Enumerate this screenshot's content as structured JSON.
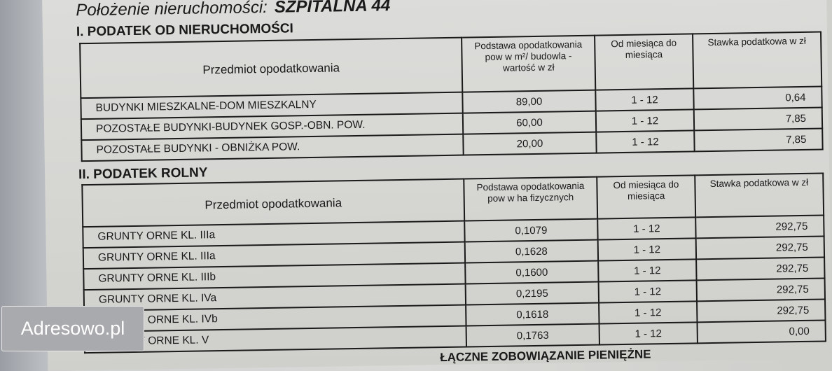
{
  "location": {
    "label": "Położenie nieruchomości:",
    "value": "SZPITALNA 44"
  },
  "section1": {
    "title": "I. PODATEK OD NIERUCHOMOŚCI",
    "headers": [
      "Przedmiot opodatkowania",
      "Podstawa  opodatkowania pow  w m²/ budowla - wartość  w zł",
      "Od miesiąca do miesiąca",
      "Stawka podatkowa w zł"
    ],
    "rows": [
      [
        "BUDYNKI MIESZKALNE-DOM MIESZKALNY",
        "89,00",
        "1 - 12",
        "0,64"
      ],
      [
        "POZOSTAŁE BUDYNKI-BUDYNEK GOSP.-OBN. POW.",
        "60,00",
        "1 - 12",
        "7,85"
      ],
      [
        "POZOSTAŁE BUDYNKI - OBNIŻKA POW.",
        "20,00",
        "1 - 12",
        "7,85"
      ]
    ]
  },
  "section2": {
    "title": "II. PODATEK ROLNY",
    "headers": [
      "Przedmiot opodatkowania",
      "Podstawa opodatkowania pow  w ha fizycznych",
      "Od miesiąca do miesiąca",
      "Stawka podatkowa w zł"
    ],
    "rows": [
      [
        "GRUNTY ORNE KL. IIIa",
        "0,1079",
        "1 - 12",
        "292,75"
      ],
      [
        "GRUNTY ORNE KL. IIIa",
        "0,1628",
        "1 - 12",
        "292,75"
      ],
      [
        "GRUNTY ORNE KL. IIIb",
        "0,1600",
        "1 - 12",
        "292,75"
      ],
      [
        "GRUNTY ORNE KL. IVa",
        "0,2195",
        "1 - 12",
        "292,75"
      ],
      [
        "GRUNTY ORNE KL. IVb",
        "0,1618",
        "1 - 12",
        "292,75"
      ],
      [
        "GRUNTY ORNE KL. V",
        "0,1763",
        "1 - 12",
        "0,00"
      ]
    ]
  },
  "footer_partial": "ŁĄCZNE ZOBOWIĄZANIE PIENIĘŻNE",
  "watermark": "Adresowo.pl"
}
